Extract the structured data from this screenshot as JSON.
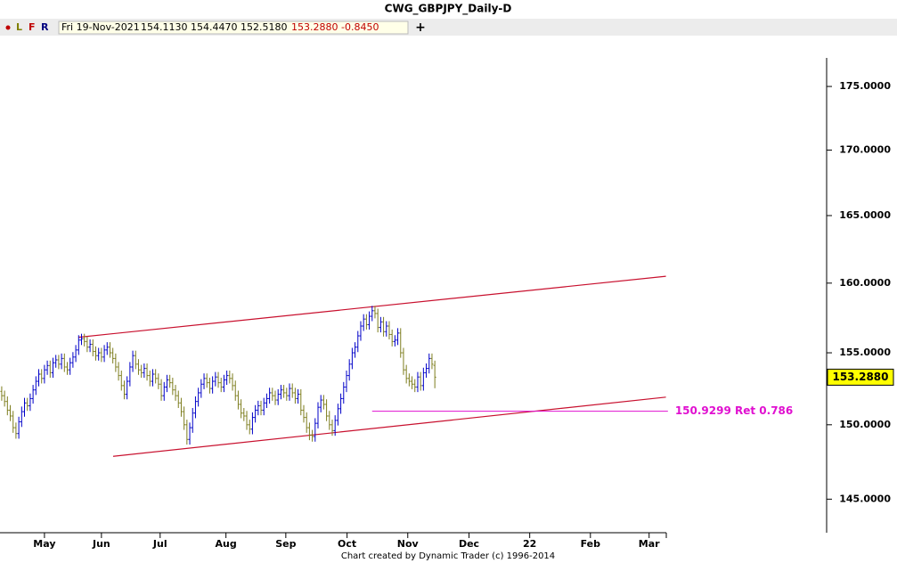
{
  "toolbar": {
    "buttons": [
      "L",
      "F",
      "R"
    ],
    "date": "Fri 19-Nov-2021",
    "open": "154.1130",
    "high": "154.4470",
    "low": "152.5180",
    "close": "153.2880",
    "change": "-0.8450"
  },
  "footer": "Chart created by Dynamic Trader  (c) 1996-2014",
  "chart_data": {
    "type": "ohlc",
    "title": "CWG_GBPJPY_Daily-D",
    "log_scale": true,
    "colors": {
      "up": "#0000c8",
      "down": "#7d7d1e"
    },
    "ylim": [
      142.8,
      179.1
    ],
    "yticks": [
      {
        "value": 145,
        "label": "145.0000"
      },
      {
        "value": 150,
        "label": "150.0000"
      },
      {
        "value": 155,
        "label": "155.0000"
      },
      {
        "value": 160,
        "label": "160.0000"
      },
      {
        "value": 165,
        "label": "165.0000"
      },
      {
        "value": 170,
        "label": "170.0000"
      },
      {
        "value": 175,
        "label": "175.0000"
      }
    ],
    "xlim": [
      -0.6,
      287
    ],
    "xticks": [
      {
        "value": 15,
        "label": "May"
      },
      {
        "value": 35,
        "label": "Jun"
      },
      {
        "value": 55.6,
        "label": "Jul"
      },
      {
        "value": 78.7,
        "label": "Aug"
      },
      {
        "value": 99.7,
        "label": "Sep"
      },
      {
        "value": 121.2,
        "label": "Oct"
      },
      {
        "value": 142.5,
        "label": "Nov"
      },
      {
        "value": 164,
        "label": "Dec"
      },
      {
        "value": 185.3,
        "label": "22"
      },
      {
        "value": 206.6,
        "label": "Feb"
      },
      {
        "value": 227.2,
        "label": "Mar"
      }
    ],
    "last_value_label": "153.2880",
    "trend_lines": [
      {
        "x": [
          26.9,
          233.1
        ],
        "y": [
          156.1,
          160.5
        ],
        "color": "#c8102e"
      },
      {
        "x": [
          39.1,
          233.1
        ],
        "y": [
          147.86,
          151.9
        ],
        "color": "#c8102e"
      }
    ],
    "level": {
      "value": 150.9299,
      "label": "150.9299 Ret 0.786",
      "x": [
        130,
        233.8
      ],
      "color": "#e010d0"
    },
    "bars": [
      [
        152.3,
        152.65,
        151.65,
        152.0
      ],
      [
        152.0,
        152.35,
        151.25,
        151.6
      ],
      [
        151.6,
        151.95,
        150.65,
        151.0
      ],
      [
        151.0,
        151.35,
        150.25,
        150.6
      ],
      [
        150.6,
        150.95,
        149.45,
        149.8
      ],
      [
        149.8,
        150.15,
        149.05,
        149.4
      ],
      [
        149.4,
        150.55,
        149.05,
        150.2
      ],
      [
        150.2,
        151.25,
        149.85,
        150.9
      ],
      [
        150.9,
        151.85,
        150.55,
        151.5
      ],
      [
        151.5,
        151.85,
        150.95,
        151.3
      ],
      [
        151.3,
        152.15,
        150.95,
        151.8
      ],
      [
        151.8,
        152.75,
        151.45,
        152.4
      ],
      [
        152.4,
        153.35,
        152.05,
        153.0
      ],
      [
        153.0,
        153.85,
        152.65,
        153.5
      ],
      [
        153.5,
        153.85,
        152.85,
        153.2
      ],
      [
        153.2,
        154.15,
        152.85,
        153.8
      ],
      [
        153.8,
        154.45,
        153.45,
        154.1
      ],
      [
        154.1,
        154.45,
        153.25,
        153.6
      ],
      [
        153.6,
        154.65,
        153.25,
        154.3
      ],
      [
        154.3,
        154.85,
        153.95,
        154.5
      ],
      [
        154.5,
        154.85,
        153.85,
        154.2
      ],
      [
        154.2,
        154.95,
        153.85,
        154.6
      ],
      [
        154.6,
        154.95,
        153.65,
        154.0
      ],
      [
        154.0,
        154.35,
        153.45,
        153.8
      ],
      [
        153.8,
        154.65,
        153.45,
        154.3
      ],
      [
        154.3,
        155.05,
        153.95,
        154.7
      ],
      [
        154.7,
        155.55,
        154.35,
        155.2
      ],
      [
        155.2,
        156.25,
        154.85,
        155.9
      ],
      [
        155.9,
        156.35,
        155.55,
        156.0
      ],
      [
        156.0,
        156.35,
        155.45,
        155.8
      ],
      [
        155.8,
        156.15,
        155.05,
        155.4
      ],
      [
        155.4,
        155.95,
        155.05,
        155.6
      ],
      [
        155.6,
        155.95,
        154.75,
        155.1
      ],
      [
        155.1,
        155.45,
        154.45,
        154.8
      ],
      [
        154.8,
        155.35,
        154.45,
        155.0
      ],
      [
        155.0,
        155.35,
        154.35,
        154.7
      ],
      [
        154.7,
        155.55,
        154.35,
        155.2
      ],
      [
        155.2,
        155.75,
        154.85,
        155.4
      ],
      [
        155.4,
        155.75,
        154.65,
        155.0
      ],
      [
        155.0,
        155.35,
        154.25,
        154.6
      ],
      [
        154.6,
        154.95,
        153.65,
        154.0
      ],
      [
        154.0,
        154.35,
        153.05,
        153.4
      ],
      [
        153.4,
        153.75,
        152.35,
        152.7
      ],
      [
        152.7,
        153.05,
        151.75,
        152.1
      ],
      [
        152.1,
        153.35,
        151.75,
        153.0
      ],
      [
        153.0,
        154.35,
        152.65,
        154.0
      ],
      [
        154.0,
        155.15,
        153.65,
        154.8
      ],
      [
        154.8,
        155.15,
        153.85,
        154.2
      ],
      [
        154.2,
        154.55,
        153.45,
        153.8
      ],
      [
        153.8,
        154.15,
        153.25,
        153.6
      ],
      [
        153.6,
        154.25,
        153.25,
        153.9
      ],
      [
        153.9,
        154.25,
        153.05,
        153.4
      ],
      [
        153.4,
        153.75,
        152.65,
        153.0
      ],
      [
        153.0,
        153.85,
        152.65,
        153.5
      ],
      [
        153.5,
        153.85,
        152.85,
        153.2
      ],
      [
        153.2,
        153.55,
        152.45,
        152.8
      ],
      [
        152.8,
        153.15,
        151.65,
        152.0
      ],
      [
        152.0,
        152.95,
        151.65,
        152.6
      ],
      [
        152.6,
        153.45,
        152.25,
        153.1
      ],
      [
        153.1,
        153.45,
        152.55,
        152.9
      ],
      [
        152.9,
        153.25,
        152.05,
        152.4
      ],
      [
        152.4,
        152.75,
        151.65,
        152.0
      ],
      [
        152.0,
        152.35,
        151.15,
        151.5
      ],
      [
        151.5,
        151.85,
        150.55,
        150.9
      ],
      [
        150.9,
        151.25,
        149.65,
        150.0
      ],
      [
        150.0,
        150.35,
        148.65,
        149.0
      ],
      [
        149.0,
        150.15,
        148.65,
        149.8
      ],
      [
        149.8,
        151.15,
        149.45,
        150.8
      ],
      [
        150.8,
        151.95,
        150.45,
        151.6
      ],
      [
        151.6,
        152.55,
        151.25,
        152.2
      ],
      [
        152.2,
        153.15,
        151.85,
        152.8
      ],
      [
        152.8,
        153.55,
        152.45,
        153.2
      ],
      [
        153.2,
        153.55,
        152.55,
        152.9
      ],
      [
        152.9,
        153.25,
        152.15,
        152.5
      ],
      [
        152.5,
        153.35,
        152.15,
        153.0
      ],
      [
        153.0,
        153.65,
        152.65,
        153.3
      ],
      [
        153.3,
        153.65,
        152.55,
        152.9
      ],
      [
        152.9,
        153.25,
        152.25,
        152.6
      ],
      [
        152.6,
        153.45,
        152.25,
        153.1
      ],
      [
        153.1,
        153.75,
        152.75,
        153.4
      ],
      [
        153.4,
        153.75,
        152.85,
        153.2
      ],
      [
        153.2,
        153.55,
        152.35,
        152.7
      ],
      [
        152.7,
        153.05,
        151.65,
        152.0
      ],
      [
        152.0,
        152.35,
        151.05,
        151.4
      ],
      [
        151.4,
        151.75,
        150.45,
        150.8
      ],
      [
        150.8,
        151.15,
        150.25,
        150.6
      ],
      [
        150.6,
        150.95,
        149.65,
        150.0
      ],
      [
        150.0,
        150.35,
        149.35,
        149.7
      ],
      [
        149.7,
        150.85,
        149.35,
        150.5
      ],
      [
        150.5,
        151.35,
        150.15,
        151.0
      ],
      [
        151.0,
        151.65,
        150.65,
        151.3
      ],
      [
        151.3,
        151.65,
        150.65,
        151.0
      ],
      [
        151.0,
        151.85,
        150.65,
        151.5
      ],
      [
        151.5,
        152.15,
        151.15,
        151.8
      ],
      [
        151.8,
        152.55,
        151.45,
        152.2
      ],
      [
        152.2,
        152.55,
        151.65,
        152.0
      ],
      [
        152.0,
        152.35,
        151.35,
        151.7
      ],
      [
        151.7,
        152.45,
        151.35,
        152.1
      ],
      [
        152.1,
        152.75,
        151.75,
        152.4
      ],
      [
        152.4,
        152.75,
        151.85,
        152.2
      ],
      [
        152.2,
        152.55,
        151.65,
        152.0
      ],
      [
        152.0,
        152.85,
        151.65,
        152.5
      ],
      [
        152.5,
        152.85,
        151.85,
        152.2
      ],
      [
        152.2,
        152.55,
        151.45,
        151.8
      ],
      [
        151.8,
        152.45,
        151.45,
        152.1
      ],
      [
        152.1,
        152.45,
        150.65,
        151.0
      ],
      [
        151.0,
        151.35,
        150.15,
        150.5
      ],
      [
        150.5,
        150.85,
        149.45,
        149.8
      ],
      [
        149.8,
        150.15,
        148.95,
        149.3
      ],
      [
        149.3,
        149.65,
        148.85,
        149.2
      ],
      [
        149.2,
        150.45,
        148.85,
        150.1
      ],
      [
        150.1,
        151.55,
        149.75,
        151.2
      ],
      [
        151.2,
        152.05,
        150.85,
        151.7
      ],
      [
        151.7,
        152.05,
        151.05,
        151.4
      ],
      [
        151.4,
        151.75,
        150.25,
        150.6
      ],
      [
        150.6,
        150.95,
        149.65,
        150.0
      ],
      [
        150.0,
        150.35,
        149.25,
        149.6
      ],
      [
        149.6,
        150.65,
        149.25,
        150.3
      ],
      [
        150.3,
        151.45,
        149.95,
        151.1
      ],
      [
        151.1,
        152.15,
        150.75,
        151.8
      ],
      [
        151.8,
        152.95,
        151.45,
        152.6
      ],
      [
        152.6,
        153.75,
        152.25,
        153.4
      ],
      [
        153.4,
        154.55,
        153.05,
        154.2
      ],
      [
        154.2,
        155.35,
        153.85,
        155.0
      ],
      [
        155.0,
        155.75,
        154.65,
        155.4
      ],
      [
        155.4,
        156.55,
        155.05,
        156.2
      ],
      [
        156.2,
        157.25,
        155.85,
        156.9
      ],
      [
        156.9,
        157.75,
        156.55,
        157.4
      ],
      [
        157.4,
        157.75,
        156.65,
        157.0
      ],
      [
        157.0,
        157.95,
        156.65,
        157.6
      ],
      [
        157.6,
        158.35,
        157.25,
        158.0
      ],
      [
        158.0,
        158.35,
        157.45,
        157.8
      ],
      [
        157.8,
        158.15,
        156.45,
        156.8
      ],
      [
        156.8,
        157.55,
        156.45,
        157.2
      ],
      [
        157.2,
        157.55,
        156.15,
        156.5
      ],
      [
        156.5,
        157.25,
        156.15,
        156.9
      ],
      [
        156.9,
        157.25,
        155.95,
        156.3
      ],
      [
        156.3,
        156.65,
        155.45,
        155.8
      ],
      [
        155.8,
        156.25,
        155.45,
        155.9
      ],
      [
        155.9,
        156.75,
        155.55,
        156.4
      ],
      [
        156.4,
        156.75,
        154.65,
        155.0
      ],
      [
        155.0,
        155.35,
        153.45,
        153.8
      ],
      [
        153.8,
        154.15,
        152.85,
        153.2
      ],
      [
        153.2,
        153.55,
        152.65,
        153.0
      ],
      [
        153.0,
        153.35,
        152.45,
        152.8
      ],
      [
        152.8,
        153.15,
        152.25,
        152.6
      ],
      [
        152.6,
        153.65,
        152.25,
        153.3
      ],
      [
        153.3,
        153.65,
        152.35,
        152.7
      ],
      [
        152.7,
        153.95,
        152.35,
        153.6
      ],
      [
        153.6,
        154.25,
        153.25,
        153.9
      ],
      [
        153.9,
        154.95,
        153.55,
        154.6
      ],
      [
        154.6,
        154.95,
        153.85,
        154.2
      ],
      [
        154.113,
        154.447,
        152.518,
        153.288
      ]
    ]
  }
}
